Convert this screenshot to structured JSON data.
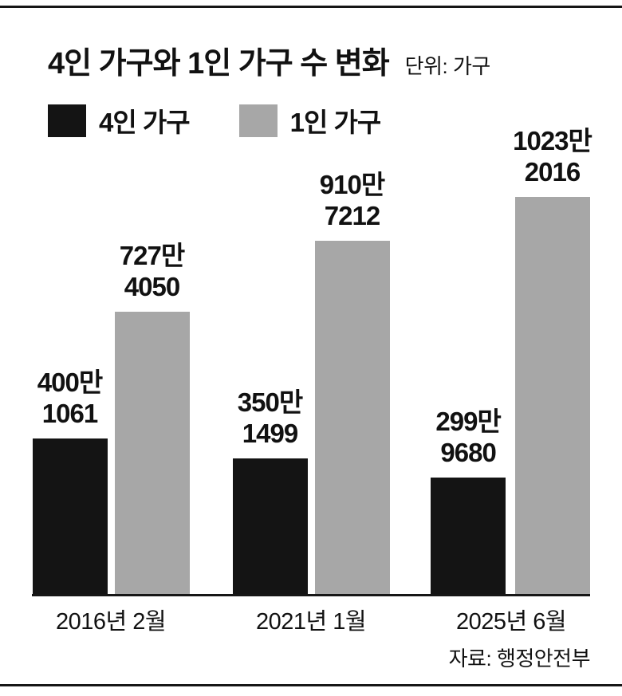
{
  "header": {
    "title": "4인 가구와 1인 가구 수 변화",
    "unit_label": "단위: 가구"
  },
  "legend": [
    {
      "label": "4인 가구",
      "color": "#141414"
    },
    {
      "label": "1인 가구",
      "color": "#a7a7a7"
    }
  ],
  "source": "자료: 행정안전부",
  "colors": {
    "bar_dark": "#141414",
    "bar_gray": "#a7a7a7",
    "text": "#111111",
    "rule": "#161616"
  },
  "chart_data": {
    "type": "bar",
    "title": "4인 가구와 1인 가구 수 변화",
    "unit": "가구",
    "categories": [
      "2016년 2월",
      "2021년 1월",
      "2025년 6월"
    ],
    "series": [
      {
        "name": "4인 가구",
        "color": "#141414",
        "values": [
          4001061,
          3501499,
          2999680
        ],
        "label_lines": [
          [
            "400만",
            "1061"
          ],
          [
            "350만",
            "1499"
          ],
          [
            "299만",
            "9680"
          ]
        ]
      },
      {
        "name": "1인 가구",
        "color": "#a7a7a7",
        "values": [
          7274050,
          9107212,
          10232016
        ],
        "label_lines": [
          [
            "727만",
            "4050"
          ],
          [
            "910만",
            "7212"
          ],
          [
            "1023만",
            "2016"
          ]
        ]
      }
    ],
    "ylim": [
      0,
      10232016
    ],
    "grid": false,
    "legend_position": "top-left",
    "source": "자료: 행정안전부"
  }
}
